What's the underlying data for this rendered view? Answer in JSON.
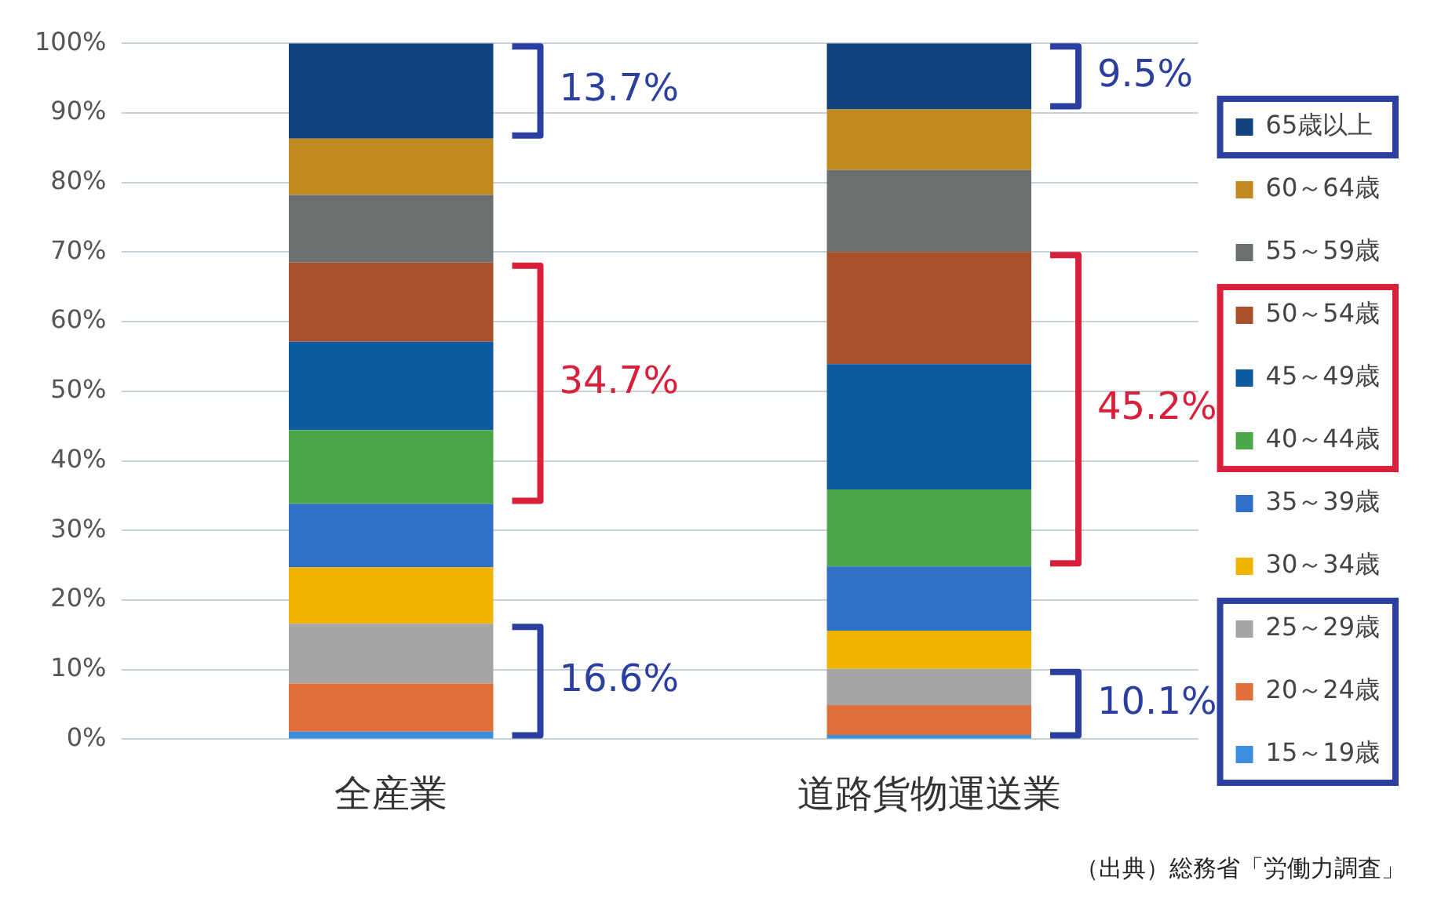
{
  "chart_data": {
    "type": "bar",
    "stacked": true,
    "categories": [
      "全産業",
      "道路貨物運送業"
    ],
    "series": [
      {
        "name": "15～19歳",
        "color": "#3c8fdc",
        "values": [
          1.1,
          0.6
        ]
      },
      {
        "name": "20～24歳",
        "color": "#e0703a",
        "values": [
          6.9,
          4.3
        ]
      },
      {
        "name": "25～29歳",
        "color": "#a5a5a5",
        "values": [
          8.6,
          5.2
        ]
      },
      {
        "name": "30～34歳",
        "color": "#f0b400",
        "values": [
          8.1,
          5.5
        ]
      },
      {
        "name": "35～39歳",
        "color": "#2e6fc8",
        "values": [
          9.1,
          9.2
        ]
      },
      {
        "name": "40～44歳",
        "color": "#4aa84a",
        "values": [
          10.6,
          11.1
        ]
      },
      {
        "name": "45～49歳",
        "color": "#0d5aa0",
        "values": [
          12.7,
          18.0
        ]
      },
      {
        "name": "50～54歳",
        "color": "#a9502a",
        "values": [
          11.4,
          16.1
        ]
      },
      {
        "name": "55～59歳",
        "color": "#6b6f70",
        "values": [
          9.7,
          11.8
        ]
      },
      {
        "name": "60～64歳",
        "color": "#c08a20",
        "values": [
          8.1,
          8.7
        ]
      },
      {
        "name": "65歳以上",
        "color": "#10427e",
        "values": [
          13.7,
          9.5
        ]
      }
    ],
    "ylim": [
      0,
      100
    ],
    "yticks": [
      {
        "value": 0,
        "label": "0%"
      },
      {
        "value": 10,
        "label": "10%"
      },
      {
        "value": 20,
        "label": "20%"
      },
      {
        "value": 30,
        "label": "30%"
      },
      {
        "value": 40,
        "label": "40%"
      },
      {
        "value": 50,
        "label": "50%"
      },
      {
        "value": 60,
        "label": "60%"
      },
      {
        "value": 70,
        "label": "70%"
      },
      {
        "value": 80,
        "label": "80%"
      },
      {
        "value": 90,
        "label": "90%"
      },
      {
        "value": 100,
        "label": "100%"
      }
    ],
    "grid": "y",
    "legend": "right",
    "annotations": [
      "13.7%",
      "34.7%",
      "16.6%",
      "9.5%",
      "45.2%",
      "10.1%",
      "（出典）総務省「労働力調査」"
    ]
  }
}
